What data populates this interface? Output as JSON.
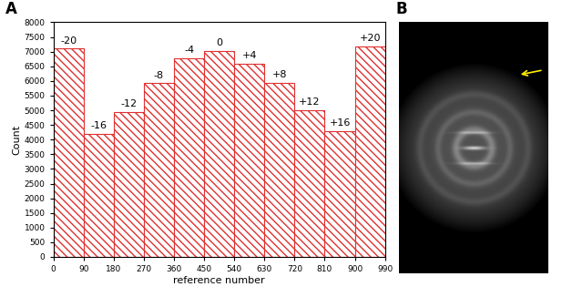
{
  "chart_data": {
    "type": "histogram",
    "bins": [
      0,
      90,
      180,
      270,
      360,
      450,
      540,
      630,
      720,
      810,
      900,
      990
    ],
    "counts": [
      7100,
      4200,
      4930,
      5920,
      6780,
      7030,
      6580,
      5940,
      5000,
      4280,
      7180
    ],
    "annotations": [
      "-20",
      "-16",
      "-12",
      "-8",
      "-4",
      "0",
      "+4",
      "+8",
      "+12",
      "+16",
      "+20"
    ],
    "x_label": "reference number",
    "y_label": "Count",
    "xlim": [
      0,
      990
    ],
    "xticks": [
      0,
      90,
      180,
      270,
      360,
      450,
      540,
      630,
      720,
      810,
      900,
      990
    ],
    "ylim": [
      0,
      8000
    ],
    "yticks": [
      0,
      500,
      1000,
      1500,
      2000,
      2500,
      3000,
      3500,
      4000,
      4500,
      5000,
      5500,
      6000,
      6500,
      7000,
      7500,
      8000
    ],
    "color": "#e03030",
    "grid": false
  },
  "panel_labels": [
    "A",
    "B"
  ]
}
